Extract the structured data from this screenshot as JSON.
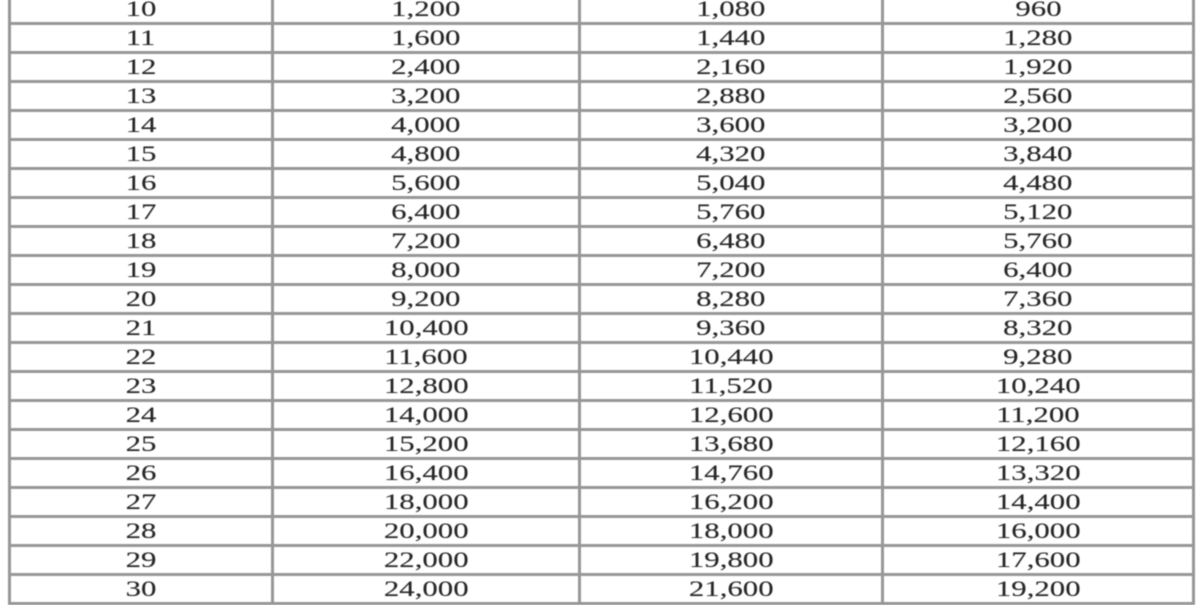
{
  "table": {
    "rows": [
      [
        "10",
        "1,200",
        "1,080",
        "960"
      ],
      [
        "11",
        "1,600",
        "1,440",
        "1,280"
      ],
      [
        "12",
        "2,400",
        "2,160",
        "1,920"
      ],
      [
        "13",
        "3,200",
        "2,880",
        "2,560"
      ],
      [
        "14",
        "4,000",
        "3,600",
        "3,200"
      ],
      [
        "15",
        "4,800",
        "4,320",
        "3,840"
      ],
      [
        "16",
        "5,600",
        "5,040",
        "4,480"
      ],
      [
        "17",
        "6,400",
        "5,760",
        "5,120"
      ],
      [
        "18",
        "7,200",
        "6,480",
        "5,760"
      ],
      [
        "19",
        "8,000",
        "7,200",
        "6,400"
      ],
      [
        "20",
        "9,200",
        "8,280",
        "7,360"
      ],
      [
        "21",
        "10,400",
        "9,360",
        "8,320"
      ],
      [
        "22",
        "11,600",
        "10,440",
        "9,280"
      ],
      [
        "23",
        "12,800",
        "11,520",
        "10,240"
      ],
      [
        "24",
        "14,000",
        "12,600",
        "11,200"
      ],
      [
        "25",
        "15,200",
        "13,680",
        "12,160"
      ],
      [
        "26",
        "16,400",
        "14,760",
        "13,320"
      ],
      [
        "27",
        "18,000",
        "16,200",
        "14,400"
      ],
      [
        "28",
        "20,000",
        "18,000",
        "16,000"
      ],
      [
        "29",
        "22,000",
        "19,800",
        "17,600"
      ],
      [
        "30",
        "24,000",
        "21,600",
        "19,200"
      ]
    ]
  },
  "colors": {
    "border": "#979797",
    "text": "#262626",
    "background": "#ffffff"
  }
}
